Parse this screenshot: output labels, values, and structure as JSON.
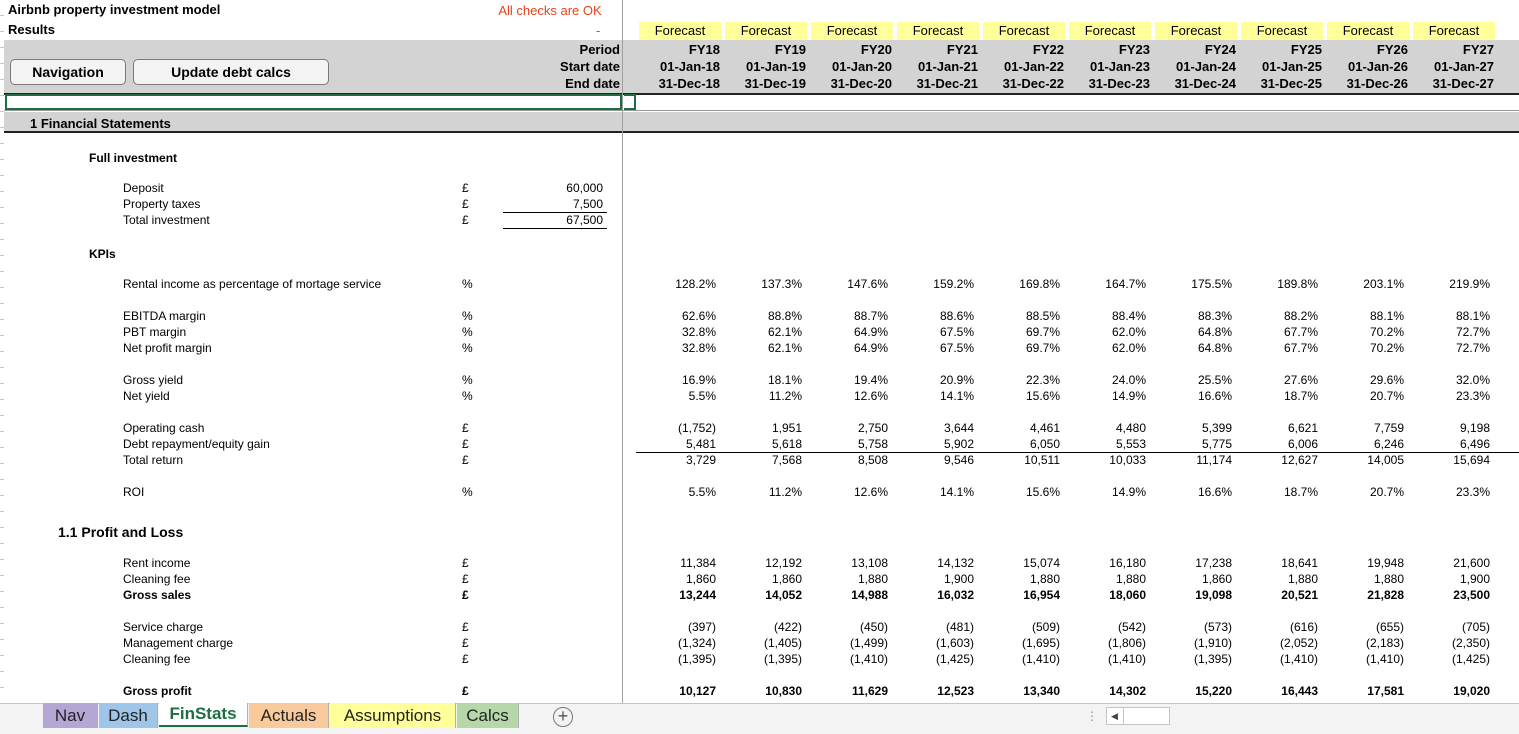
{
  "header": {
    "title": "Airbnb property investment model",
    "subtitle": "Results",
    "checks_status": "All checks are OK",
    "checks_value": "-",
    "buttons": {
      "navigation": "Navigation",
      "update_debt": "Update debt calcs"
    },
    "row_labels": {
      "period": "Period",
      "start": "Start date",
      "end": "End date"
    }
  },
  "columns": [
    {
      "status": "Forecast",
      "period": "FY18",
      "start": "01-Jan-18",
      "end": "31-Dec-18"
    },
    {
      "status": "Forecast",
      "period": "FY19",
      "start": "01-Jan-19",
      "end": "31-Dec-19"
    },
    {
      "status": "Forecast",
      "period": "FY20",
      "start": "01-Jan-20",
      "end": "31-Dec-20"
    },
    {
      "status": "Forecast",
      "period": "FY21",
      "start": "01-Jan-21",
      "end": "31-Dec-21"
    },
    {
      "status": "Forecast",
      "period": "FY22",
      "start": "01-Jan-22",
      "end": "31-Dec-22"
    },
    {
      "status": "Forecast",
      "period": "FY23",
      "start": "01-Jan-23",
      "end": "31-Dec-23"
    },
    {
      "status": "Forecast",
      "period": "FY24",
      "start": "01-Jan-24",
      "end": "31-Dec-24"
    },
    {
      "status": "Forecast",
      "period": "FY25",
      "start": "01-Jan-25",
      "end": "31-Dec-25"
    },
    {
      "status": "Forecast",
      "period": "FY26",
      "start": "01-Jan-26",
      "end": "31-Dec-26"
    },
    {
      "status": "Forecast",
      "period": "FY27",
      "start": "01-Jan-27",
      "end": "31-Dec-27"
    }
  ],
  "section": {
    "title": "1 Financial Statements",
    "full_investment": {
      "heading": "Full investment",
      "rows": [
        {
          "label": "Deposit",
          "unit": "£",
          "value": "60,000"
        },
        {
          "label": "Property taxes",
          "unit": "£",
          "value": "7,500"
        },
        {
          "label": "Total investment",
          "unit": "£",
          "value": "67,500"
        }
      ]
    },
    "kpis_heading": "KPIs",
    "pnl_heading": "1.1 Profit and Loss"
  },
  "rows": [
    {
      "label": "Rental income as percentage of mortage service",
      "unit": "%",
      "values": [
        "128.2%",
        "137.3%",
        "147.6%",
        "159.2%",
        "169.8%",
        "164.7%",
        "175.5%",
        "189.8%",
        "203.1%",
        "219.9%"
      ]
    },
    {
      "label": "EBITDA margin",
      "unit": "%",
      "values": [
        "62.6%",
        "88.8%",
        "88.7%",
        "88.6%",
        "88.5%",
        "88.4%",
        "88.3%",
        "88.2%",
        "88.1%",
        "88.1%"
      ]
    },
    {
      "label": "PBT margin",
      "unit": "%",
      "values": [
        "32.8%",
        "62.1%",
        "64.9%",
        "67.5%",
        "69.7%",
        "62.0%",
        "64.8%",
        "67.7%",
        "70.2%",
        "72.7%"
      ]
    },
    {
      "label": "Net profit margin",
      "unit": "%",
      "values": [
        "32.8%",
        "62.1%",
        "64.9%",
        "67.5%",
        "69.7%",
        "62.0%",
        "64.8%",
        "67.7%",
        "70.2%",
        "72.7%"
      ]
    },
    {
      "label": "Gross yield",
      "unit": "%",
      "values": [
        "16.9%",
        "18.1%",
        "19.4%",
        "20.9%",
        "22.3%",
        "24.0%",
        "25.5%",
        "27.6%",
        "29.6%",
        "32.0%"
      ]
    },
    {
      "label": "Net yield",
      "unit": "%",
      "values": [
        "5.5%",
        "11.2%",
        "12.6%",
        "14.1%",
        "15.6%",
        "14.9%",
        "16.6%",
        "18.7%",
        "20.7%",
        "23.3%"
      ]
    },
    {
      "label": "Operating cash",
      "unit": "£",
      "values": [
        "(1,752)",
        "1,951",
        "2,750",
        "3,644",
        "4,461",
        "4,480",
        "5,399",
        "6,621",
        "7,759",
        "9,198"
      ]
    },
    {
      "label": "Debt repayment/equity gain",
      "unit": "£",
      "values": [
        "5,481",
        "5,618",
        "5,758",
        "5,902",
        "6,050",
        "5,553",
        "5,775",
        "6,006",
        "6,246",
        "6,496"
      ]
    },
    {
      "label": "Total return",
      "unit": "£",
      "values": [
        "3,729",
        "7,568",
        "8,508",
        "9,546",
        "10,511",
        "10,033",
        "11,174",
        "12,627",
        "14,005",
        "15,694"
      ]
    },
    {
      "label": "ROI",
      "unit": "%",
      "values": [
        "5.5%",
        "11.2%",
        "12.6%",
        "14.1%",
        "15.6%",
        "14.9%",
        "16.6%",
        "18.7%",
        "20.7%",
        "23.3%"
      ]
    },
    {
      "label": "Rent income",
      "unit": "£",
      "values": [
        "11,384",
        "12,192",
        "13,108",
        "14,132",
        "15,074",
        "16,180",
        "17,238",
        "18,641",
        "19,948",
        "21,600"
      ]
    },
    {
      "label": "Cleaning fee",
      "unit": "£",
      "values": [
        "1,860",
        "1,860",
        "1,880",
        "1,900",
        "1,880",
        "1,880",
        "1,860",
        "1,880",
        "1,880",
        "1,900"
      ]
    },
    {
      "label": "Gross sales",
      "unit": "£",
      "values": [
        "13,244",
        "14,052",
        "14,988",
        "16,032",
        "16,954",
        "18,060",
        "19,098",
        "20,521",
        "21,828",
        "23,500"
      ]
    },
    {
      "label": "Service charge",
      "unit": "£",
      "values": [
        "(397)",
        "(422)",
        "(450)",
        "(481)",
        "(509)",
        "(542)",
        "(573)",
        "(616)",
        "(655)",
        "(705)"
      ]
    },
    {
      "label": "Management charge",
      "unit": "£",
      "values": [
        "(1,324)",
        "(1,405)",
        "(1,499)",
        "(1,603)",
        "(1,695)",
        "(1,806)",
        "(1,910)",
        "(2,052)",
        "(2,183)",
        "(2,350)"
      ]
    },
    {
      "label": "Cleaning fee",
      "unit": "£",
      "values": [
        "(1,395)",
        "(1,395)",
        "(1,410)",
        "(1,425)",
        "(1,410)",
        "(1,410)",
        "(1,395)",
        "(1,410)",
        "(1,410)",
        "(1,425)"
      ]
    },
    {
      "label": "Gross profit",
      "unit": "£",
      "values": [
        "10,127",
        "10,830",
        "11,629",
        "12,523",
        "13,340",
        "14,302",
        "15,220",
        "16,443",
        "17,581",
        "19,020"
      ]
    }
  ],
  "tabs": [
    {
      "label": "Nav",
      "color": "#b4a7d6",
      "active": false
    },
    {
      "label": "Dash",
      "color": "#9fc5e8",
      "active": false
    },
    {
      "label": "FinStats",
      "color": "#ffffff",
      "active": true
    },
    {
      "label": "Actuals",
      "color": "#f9cb9c",
      "active": false
    },
    {
      "label": "Assumptions",
      "color": "#ffff99",
      "active": false
    },
    {
      "label": "Calcs",
      "color": "#b6d7a8",
      "active": false
    }
  ],
  "icons": {
    "add_sheet": "plus-circle-icon",
    "scroll_left": "caret-left-icon"
  }
}
